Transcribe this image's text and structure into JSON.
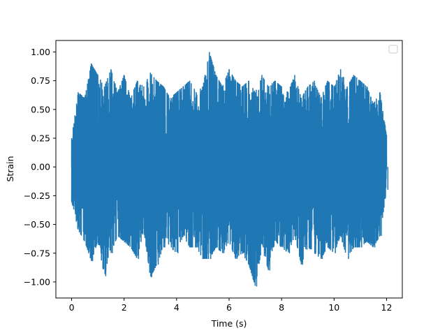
{
  "chart_data": {
    "type": "line",
    "title": "",
    "xlabel": "Time (s)",
    "ylabel": "Strain",
    "xlim": [
      -0.6,
      12.6
    ],
    "ylim": [
      -1.14,
      1.1
    ],
    "xticks": [
      0,
      2,
      4,
      6,
      8,
      10,
      12
    ],
    "xtick_labels": [
      "0",
      "2",
      "4",
      "6",
      "8",
      "10",
      "12"
    ],
    "yticks": [
      -1.0,
      -0.75,
      -0.5,
      -0.25,
      0.0,
      0.25,
      0.5,
      0.75,
      1.0
    ],
    "ytick_labels": [
      "−1.00",
      "−0.75",
      "−0.50",
      "−0.25",
      "0.00",
      "0.25",
      "0.50",
      "0.75",
      "1.00"
    ],
    "grid": false,
    "legend": {
      "placement": "top-right",
      "entries": []
    },
    "series": [
      {
        "color": "#1f77b4",
        "x_range": [
          0,
          12
        ],
        "y_range": [
          -1.04,
          1.0
        ],
        "x": [
          0,
          0.25,
          0.5,
          0.75,
          1,
          1.25,
          1.5,
          1.75,
          2,
          2.25,
          2.5,
          2.75,
          3,
          3.25,
          3.5,
          3.75,
          4,
          4.25,
          4.5,
          4.75,
          5,
          5.25,
          5.5,
          5.75,
          6,
          6.25,
          6.5,
          6.75,
          7,
          7.25,
          7.5,
          7.75,
          8,
          8.25,
          8.5,
          8.75,
          9,
          9.25,
          9.5,
          9.75,
          10,
          10.25,
          10.5,
          10.75,
          11,
          11.25,
          11.5,
          11.75,
          12
        ],
        "y_max": [
          0.25,
          0.65,
          0.6,
          0.9,
          0.8,
          0.7,
          0.85,
          0.65,
          0.8,
          0.6,
          0.75,
          0.7,
          0.82,
          0.75,
          0.7,
          0.6,
          0.65,
          0.7,
          0.75,
          0.65,
          0.7,
          1.0,
          0.8,
          0.7,
          0.85,
          0.75,
          0.7,
          0.75,
          0.65,
          0.8,
          0.7,
          0.75,
          0.7,
          0.65,
          0.8,
          0.6,
          0.7,
          0.75,
          0.6,
          0.75,
          0.7,
          0.85,
          0.7,
          0.8,
          0.75,
          0.7,
          0.55,
          0.65,
          0.28
        ],
        "y_min": [
          -0.3,
          -0.55,
          -0.65,
          -0.82,
          -0.65,
          -0.95,
          -0.75,
          -0.6,
          -0.65,
          -0.7,
          -0.8,
          -0.55,
          -0.96,
          -0.85,
          -0.7,
          -0.7,
          -0.75,
          -0.6,
          -0.7,
          -0.7,
          -0.8,
          -0.8,
          -0.7,
          -0.75,
          -0.65,
          -0.8,
          -0.75,
          -0.85,
          -1.04,
          -0.7,
          -0.9,
          -0.65,
          -0.7,
          -0.75,
          -0.6,
          -0.85,
          -0.7,
          -0.75,
          -0.8,
          -0.7,
          -0.75,
          -0.6,
          -0.8,
          -0.7,
          -0.7,
          -0.65,
          -0.7,
          -0.6,
          -0.2
        ]
      }
    ]
  }
}
